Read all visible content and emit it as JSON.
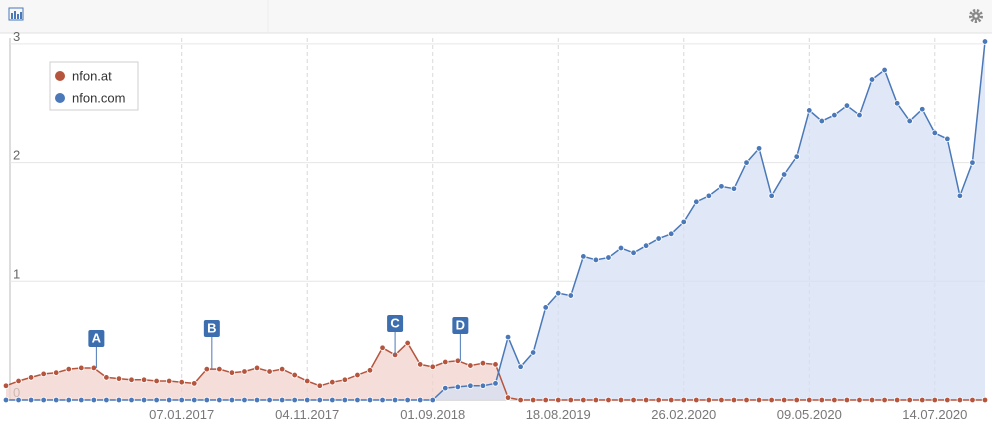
{
  "chart_data": {
    "type": "line",
    "area": true,
    "markers": true,
    "grid": true,
    "legend": "top-left",
    "categories": [
      null,
      null,
      null,
      null,
      null,
      null,
      null,
      null,
      null,
      null,
      null,
      null,
      null,
      null,
      "07.01.2017",
      null,
      null,
      null,
      null,
      null,
      null,
      null,
      null,
      null,
      "04.11.2017",
      null,
      null,
      null,
      null,
      null,
      null,
      null,
      null,
      null,
      "01.09.2018",
      null,
      null,
      null,
      null,
      null,
      null,
      null,
      null,
      null,
      "18.08.2019",
      null,
      null,
      null,
      null,
      null,
      null,
      null,
      null,
      null,
      "26.02.2020",
      null,
      null,
      null,
      null,
      null,
      null,
      null,
      null,
      null,
      "09.05.2020",
      null,
      null,
      null,
      null,
      null,
      null,
      null,
      null,
      null,
      "14.07.2020",
      null,
      null,
      null,
      null
    ],
    "series": [
      {
        "name": "nfon.at",
        "color": "#b5553e",
        "fill": "#f2d3cc",
        "values": [
          0.12,
          0.16,
          0.19,
          0.22,
          0.23,
          0.26,
          0.27,
          0.27,
          0.19,
          0.18,
          0.17,
          0.17,
          0.16,
          0.16,
          0.15,
          0.14,
          0.26,
          0.26,
          0.23,
          0.24,
          0.27,
          0.24,
          0.26,
          0.21,
          0.16,
          0.12,
          0.15,
          0.17,
          0.21,
          0.25,
          0.44,
          0.38,
          0.48,
          0.3,
          0.28,
          0.32,
          0.33,
          0.29,
          0.31,
          0.3,
          0.02,
          0,
          0,
          0,
          0,
          0,
          0,
          0,
          0,
          0,
          0,
          0,
          0,
          0,
          0,
          0,
          0,
          0,
          0,
          0,
          0,
          0,
          0,
          0,
          0,
          0,
          0,
          0,
          0,
          0,
          0,
          0,
          0,
          0,
          0,
          0,
          0,
          0,
          0
        ]
      },
      {
        "name": "nfon.com",
        "color": "#4a78b8",
        "fill": "#d5dff3",
        "values": [
          0,
          0,
          0,
          0,
          0,
          0,
          0,
          0,
          0,
          0,
          0,
          0,
          0,
          0,
          0,
          0,
          0,
          0,
          0,
          0,
          0,
          0,
          0,
          0,
          0,
          0,
          0,
          0,
          0,
          0,
          0,
          0,
          0,
          0,
          0,
          0.1,
          0.11,
          0.12,
          0.12,
          0.14,
          0.53,
          0.28,
          0.4,
          0.78,
          0.9,
          0.88,
          1.21,
          1.18,
          1.2,
          1.28,
          1.24,
          1.3,
          1.36,
          1.4,
          1.5,
          1.67,
          1.72,
          1.8,
          1.78,
          2.0,
          2.12,
          1.72,
          1.9,
          2.05,
          2.44,
          2.35,
          2.4,
          2.48,
          2.4,
          2.7,
          2.78,
          2.5,
          2.35,
          2.45,
          2.25,
          2.2,
          1.72,
          2.0,
          3.02
        ]
      }
    ],
    "annotations": [
      "A",
      "B",
      "C",
      "D"
    ],
    "ylim": [
      0,
      3.05
    ],
    "yticks": [
      0,
      1,
      2,
      3
    ]
  }
}
